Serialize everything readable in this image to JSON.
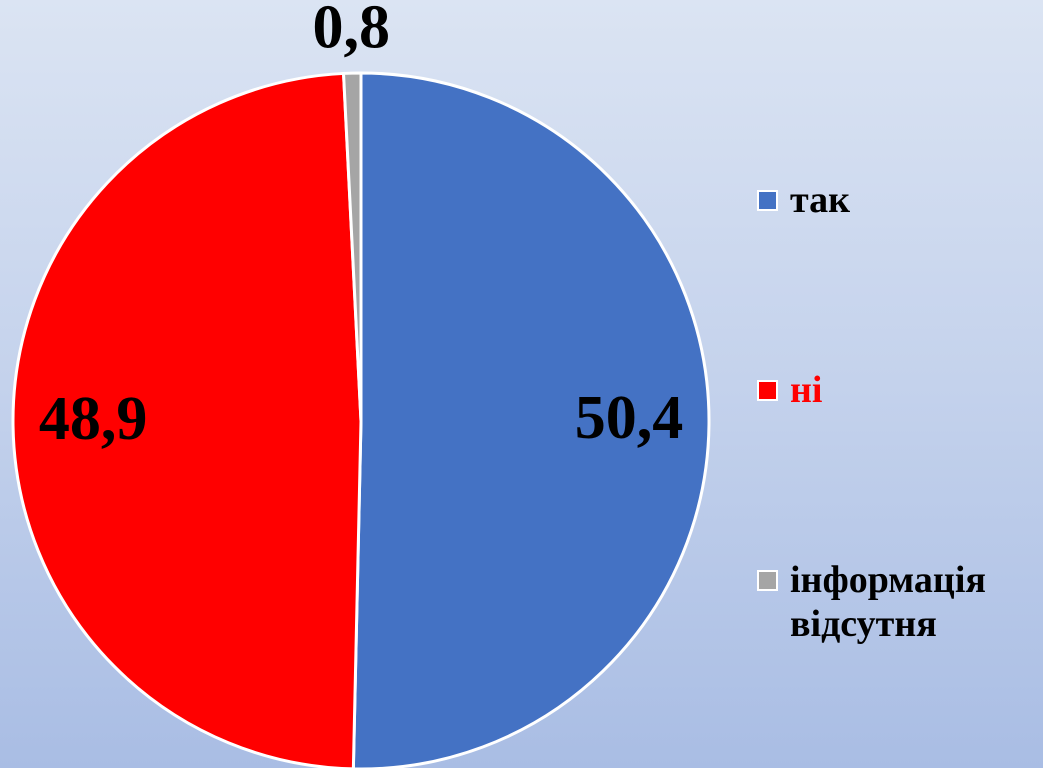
{
  "chart_data": {
    "type": "pie",
    "categories": [
      "так",
      "ні",
      "інформація відсутня"
    ],
    "values": [
      50.4,
      48.9,
      0.8
    ],
    "value_labels": [
      "50,4",
      "48,9",
      "0,8"
    ],
    "colors": [
      "#4472c4",
      "#ff0000",
      "#a5a5a5"
    ],
    "legend_text_colors": [
      "#000000",
      "#ff0000",
      "#000000"
    ]
  }
}
